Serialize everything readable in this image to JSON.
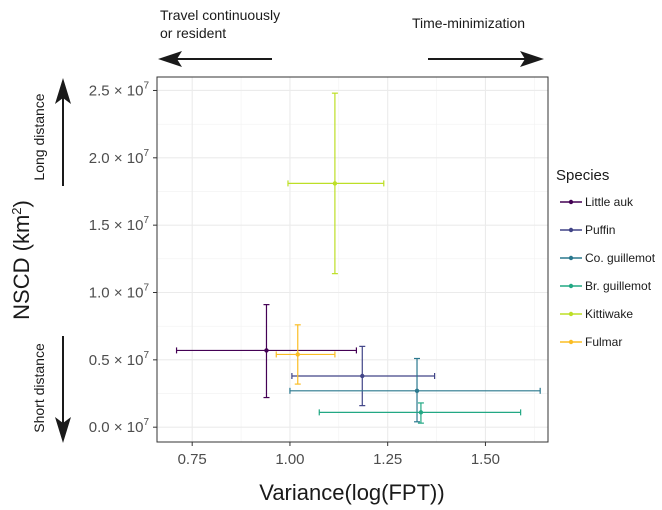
{
  "chart_data": {
    "type": "scatter",
    "xlabel": "Variance(log(FPT))",
    "ylabel": "NSCD (km²)",
    "ylabel_parts": {
      "main": "NSCD (km",
      "sup": "2",
      "end": ")"
    },
    "xlim": [
      0.66,
      1.66
    ],
    "ylim": [
      -1100000,
      26000000
    ],
    "x_ticks": [
      0.75,
      1.0,
      1.25,
      1.5
    ],
    "x_tick_labels": [
      "0.75",
      "1.00",
      "1.25",
      "1.50"
    ],
    "y_ticks": [
      0,
      5000000,
      10000000,
      15000000,
      20000000,
      25000000
    ],
    "y_tick_labels": [
      {
        "mant": "0.0",
        "exp": "7"
      },
      {
        "mant": "0.5",
        "exp": "7"
      },
      {
        "mant": "1.0",
        "exp": "7"
      },
      {
        "mant": "1.5",
        "exp": "7"
      },
      {
        "mant": "2.0",
        "exp": "7"
      },
      {
        "mant": "2.5",
        "exp": "7"
      }
    ],
    "grid": true,
    "legend_title": "Species",
    "legend_position": "right",
    "series": [
      {
        "name": "Little auk",
        "color": "#440154",
        "x": 0.94,
        "x_low": 0.71,
        "x_high": 1.17,
        "y": 5700000,
        "y_low": 2200000,
        "y_high": 9100000
      },
      {
        "name": "Puffin",
        "color": "#414487",
        "x": 1.185,
        "x_low": 1.005,
        "x_high": 1.37,
        "y": 3800000,
        "y_low": 1600000,
        "y_high": 6000000
      },
      {
        "name": "Co. guillemot",
        "color": "#2a788e",
        "x": 1.325,
        "x_low": 1.0,
        "x_high": 1.64,
        "y": 2700000,
        "y_low": 400000,
        "y_high": 5100000
      },
      {
        "name": "Br. guillemot",
        "color": "#22a884",
        "x": 1.335,
        "x_low": 1.075,
        "x_high": 1.59,
        "y": 1100000,
        "y_low": 300000,
        "y_high": 1800000
      },
      {
        "name": "Kittiwake",
        "color": "#bddf26",
        "x": 1.115,
        "x_low": 0.995,
        "x_high": 1.24,
        "y": 18100000,
        "y_low": 11400000,
        "y_high": 24800000
      },
      {
        "name": "Fulmar",
        "color": "#fbbd24",
        "x": 1.02,
        "x_low": 0.965,
        "x_high": 1.115,
        "y": 5400000,
        "y_low": 3200000,
        "y_high": 7600000
      }
    ],
    "annotations": {
      "top_left_line1": "Travel continuously",
      "top_left_line2": "or resident",
      "top_right": "Time-minimization",
      "left_top": "Long distance",
      "left_bottom": "Short distance"
    }
  }
}
